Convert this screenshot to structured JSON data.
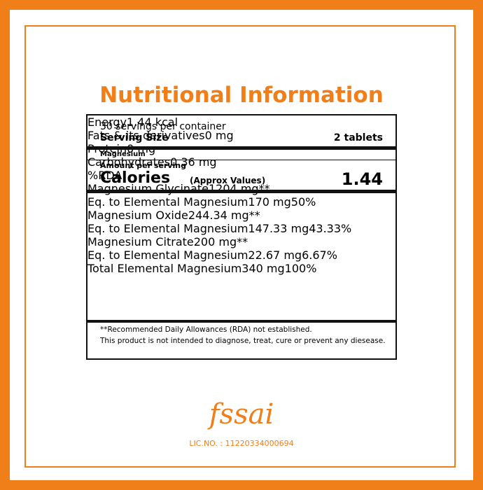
{
  "header": {
    "title": "Nutritional Information"
  },
  "panel": {
    "servings": "30 servings per container",
    "serving_size_label": "Serving Size",
    "serving_size_value": "2 tablets",
    "product": "Magnesium",
    "amount_per_serving": "Amount per serving",
    "calories_label": "Calories",
    "calories_note": "(Approx Values)",
    "calories_value": "1.44",
    "rows": [
      [
        "Energy",
        "1.44 kcal",
        null
      ],
      [
        "Fats & its derivatives",
        "0 mg",
        null
      ],
      [
        "Protein",
        "0 mg",
        null
      ],
      [
        "Carbohydrates",
        "0.36 mg",
        null
      ],
      [
        null,
        null,
        "%RDA"
      ],
      [
        "Magnesium Glycinate",
        "1204 mg",
        "**"
      ],
      [
        "Eq. to Elemental Magnesium",
        "170 mg",
        "50%"
      ],
      [
        "Magnesium Oxide",
        "244.34 mg",
        "**"
      ],
      [
        "Eq. to Elemental Magnesium",
        "147.33 mg",
        "43.33%"
      ],
      [
        "Magnesium Citrate",
        "200 mg",
        "**"
      ],
      [
        "Eq. to Elemental Magnesium",
        "22.67 mg",
        "6.67%"
      ],
      [
        "Total Elemental Magnesium",
        "340 mg",
        "100%"
      ]
    ],
    "footnotes": [
      "**Recommended Daily Allowances (RDA) not established.",
      "This product is not intended to diagnose, treat, cure or prevent any diesease."
    ]
  },
  "footer": {
    "logo": "fssai",
    "license": "LIC.NO. : 11220334000694"
  }
}
